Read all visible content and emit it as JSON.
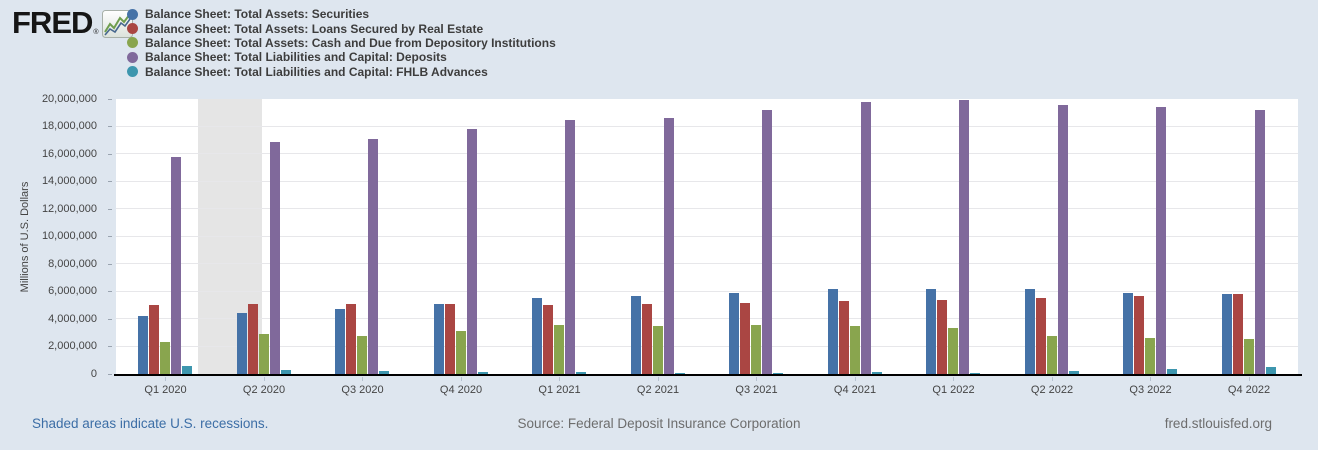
{
  "header": {
    "logo_text": "FRED",
    "logo_reg": "®"
  },
  "chart_data": {
    "type": "bar",
    "title": "",
    "xlabel": "",
    "ylabel": "Millions of U.S. Dollars",
    "ylim": [
      0,
      20000000
    ],
    "ytick_step": 2000000,
    "ytick_labels": [
      "0",
      "2,000,000",
      "4,000,000",
      "6,000,000",
      "8,000,000",
      "10,000,000",
      "12,000,000",
      "14,000,000",
      "16,000,000",
      "18,000,000",
      "20,000,000"
    ],
    "grid": true,
    "legend_position": "top-left",
    "categories": [
      "Q1 2020",
      "Q2 2020",
      "Q3 2020",
      "Q4 2020",
      "Q1 2021",
      "Q2 2021",
      "Q3 2021",
      "Q4 2021",
      "Q1 2022",
      "Q2 2022",
      "Q3 2022",
      "Q4 2022"
    ],
    "series": [
      {
        "name": "Balance Sheet: Total Assets: Securities",
        "color": "#4572a7",
        "values": [
          4200000,
          4450000,
          4750000,
          5100000,
          5500000,
          5700000,
          5900000,
          6200000,
          6200000,
          6150000,
          5900000,
          5850000
        ]
      },
      {
        "name": "Balance Sheet: Total Assets: Loans Secured by Real Estate",
        "color": "#aa4643",
        "values": [
          5050000,
          5100000,
          5100000,
          5100000,
          5050000,
          5100000,
          5200000,
          5300000,
          5400000,
          5500000,
          5650000,
          5800000
        ]
      },
      {
        "name": "Balance Sheet: Total Assets: Cash and Due from Depository Institutions",
        "color": "#89a54e",
        "values": [
          2300000,
          2900000,
          2800000,
          3150000,
          3550000,
          3500000,
          3550000,
          3500000,
          3350000,
          2800000,
          2650000,
          2550000
        ]
      },
      {
        "name": "Balance Sheet: Total Liabilities and Capital: Deposits",
        "color": "#80699b",
        "values": [
          15800000,
          16900000,
          17100000,
          17800000,
          18450000,
          18650000,
          19200000,
          19750000,
          19900000,
          19600000,
          19400000,
          19200000
        ]
      },
      {
        "name": "Balance Sheet: Total Liabilities and Capital: FHLB Advances",
        "color": "#3d96ae",
        "values": [
          550000,
          300000,
          190000,
          160000,
          130000,
          110000,
          110000,
          150000,
          110000,
          240000,
          380000,
          520000
        ]
      }
    ],
    "recession_bands": [
      {
        "label": "U.S. recession",
        "x_start_frac": 0.0694,
        "x_end_frac": 0.1235
      }
    ]
  },
  "footer": {
    "recession_note": "Shaded areas indicate U.S. recessions.",
    "source": "Source: Federal Deposit Insurance Corporation",
    "site": "fred.stlouisfed.org"
  },
  "colors": {
    "background": "#dee6ef",
    "plot_background": "#ffffff",
    "recession_shading": "#e5e5e5",
    "axis_line": "#000000",
    "recession_note_text": "#3c6ea6",
    "source_text": "#6d6d6d"
  }
}
